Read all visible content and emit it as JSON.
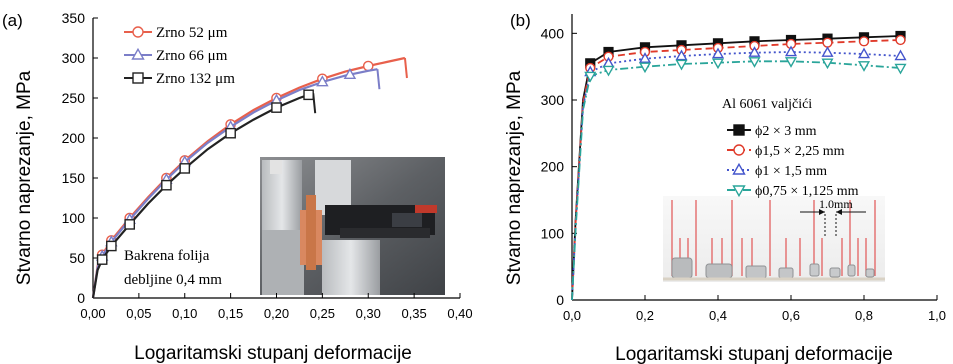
{
  "chart_data": [
    {
      "panel_label": "(a)",
      "type": "line",
      "xlabel": "Logaritamski stupanj deformacije",
      "ylabel": "Stvarno naprezanje, MPa",
      "xlim": [
        0,
        0.4
      ],
      "ylim": [
        0,
        350
      ],
      "xticks": [
        "0,00",
        "0,05",
        "0,10",
        "0,15",
        "0,20",
        "0,25",
        "0,30",
        "0,35",
        "0,40"
      ],
      "yticks": [
        "0",
        "50",
        "100",
        "150",
        "200",
        "250",
        "300",
        "350"
      ],
      "grid": false,
      "legend_position": "top-left",
      "annotation": [
        "Bakrena folija",
        "debljine 0,4 mm"
      ],
      "series": [
        {
          "name": "Zrno 52 μm",
          "color": "#e8604c",
          "marker": "circle",
          "x": [
            0,
            0.005,
            0.01,
            0.02,
            0.04,
            0.06,
            0.08,
            0.1,
            0.125,
            0.15,
            0.175,
            0.2,
            0.225,
            0.25,
            0.275,
            0.3,
            0.32,
            0.34
          ],
          "y": [
            0,
            40,
            54,
            72,
            100,
            126,
            150,
            172,
            196,
            217,
            235,
            250,
            263,
            274,
            283,
            290,
            295,
            300
          ],
          "marker_x": [
            0.01,
            0.02,
            0.04,
            0.08,
            0.1,
            0.15,
            0.2,
            0.25,
            0.3
          ]
        },
        {
          "name": "Zrno 66 μm",
          "color": "#7b7ec8",
          "marker": "triangle",
          "x": [
            0,
            0.005,
            0.01,
            0.02,
            0.04,
            0.06,
            0.08,
            0.1,
            0.125,
            0.15,
            0.175,
            0.2,
            0.225,
            0.25,
            0.275,
            0.3,
            0.31
          ],
          "y": [
            0,
            38,
            52,
            70,
            98,
            124,
            148,
            170,
            194,
            214,
            232,
            247,
            260,
            270,
            278,
            284,
            286
          ],
          "marker_x": [
            0.01,
            0.02,
            0.04,
            0.08,
            0.1,
            0.15,
            0.2,
            0.25,
            0.28
          ]
        },
        {
          "name": "Zrno 132 μm",
          "color": "#222222",
          "marker": "square",
          "x": [
            0,
            0.005,
            0.01,
            0.02,
            0.04,
            0.06,
            0.08,
            0.1,
            0.125,
            0.15,
            0.175,
            0.2,
            0.225,
            0.24
          ],
          "y": [
            0,
            35,
            48,
            65,
            92,
            118,
            141,
            162,
            186,
            206,
            223,
            238,
            250,
            256
          ],
          "marker_x": [
            0.01,
            0.02,
            0.04,
            0.08,
            0.1,
            0.15,
            0.2,
            0.235
          ]
        }
      ]
    },
    {
      "panel_label": "(b)",
      "type": "line",
      "xlabel": "Logaritamski stupanj deformacije",
      "ylabel": "Stvarno naprezanje, MPa",
      "xlim": [
        0,
        1.0
      ],
      "ylim": [
        0,
        450
      ],
      "xticks": [
        "0,0",
        "0,2",
        "0,4",
        "0,6",
        "0,8",
        "1,0"
      ],
      "yticks": [
        "0",
        "100",
        "200",
        "300",
        "400"
      ],
      "grid": false,
      "legend_title": "Al 6061 valjčići",
      "legend_position": "center-right",
      "inset_label": "1.0mm",
      "series": [
        {
          "name": "ϕ2 × 3 mm",
          "color": "#111111",
          "marker": "square",
          "dash": "solid",
          "x": [
            0,
            0.01,
            0.03,
            0.05,
            0.1,
            0.2,
            0.3,
            0.4,
            0.5,
            0.6,
            0.7,
            0.8,
            0.9
          ],
          "y": [
            0,
            120,
            300,
            355,
            372,
            379,
            382,
            385,
            388,
            390,
            392,
            394,
            396
          ],
          "marker_x": [
            0.05,
            0.1,
            0.2,
            0.3,
            0.4,
            0.5,
            0.6,
            0.7,
            0.8,
            0.9
          ]
        },
        {
          "name": "ϕ1,5 × 2,25 mm",
          "color": "#e03a2a",
          "marker": "circle",
          "dash": "dashed",
          "x": [
            0,
            0.01,
            0.03,
            0.05,
            0.1,
            0.2,
            0.3,
            0.4,
            0.5,
            0.6,
            0.7,
            0.8,
            0.9
          ],
          "y": [
            0,
            115,
            295,
            348,
            365,
            372,
            375,
            378,
            381,
            384,
            386,
            388,
            390
          ],
          "marker_x": [
            0.05,
            0.1,
            0.2,
            0.3,
            0.4,
            0.5,
            0.6,
            0.7,
            0.8,
            0.9
          ]
        },
        {
          "name": "ϕ1 × 1,5 mm",
          "color": "#4455cc",
          "marker": "triangle",
          "dash": "dotted",
          "x": [
            0,
            0.01,
            0.03,
            0.05,
            0.1,
            0.2,
            0.3,
            0.4,
            0.5,
            0.6,
            0.7,
            0.8,
            0.9
          ],
          "y": [
            0,
            110,
            290,
            342,
            355,
            362,
            366,
            369,
            371,
            372,
            371,
            369,
            366
          ],
          "marker_x": [
            0.05,
            0.1,
            0.2,
            0.3,
            0.4,
            0.5,
            0.6,
            0.7,
            0.8,
            0.9
          ]
        },
        {
          "name": "ϕ0,75 × 1,125 mm",
          "color": "#2aa59a",
          "marker": "triangle-down",
          "dash": "dashdot",
          "x": [
            0,
            0.01,
            0.03,
            0.05,
            0.1,
            0.2,
            0.3,
            0.4,
            0.5,
            0.6,
            0.7,
            0.8,
            0.9
          ],
          "y": [
            0,
            105,
            285,
            336,
            345,
            350,
            354,
            356,
            358,
            358,
            356,
            352,
            348
          ],
          "marker_x": [
            0.05,
            0.1,
            0.2,
            0.3,
            0.4,
            0.5,
            0.6,
            0.7,
            0.8,
            0.9
          ]
        }
      ]
    }
  ]
}
